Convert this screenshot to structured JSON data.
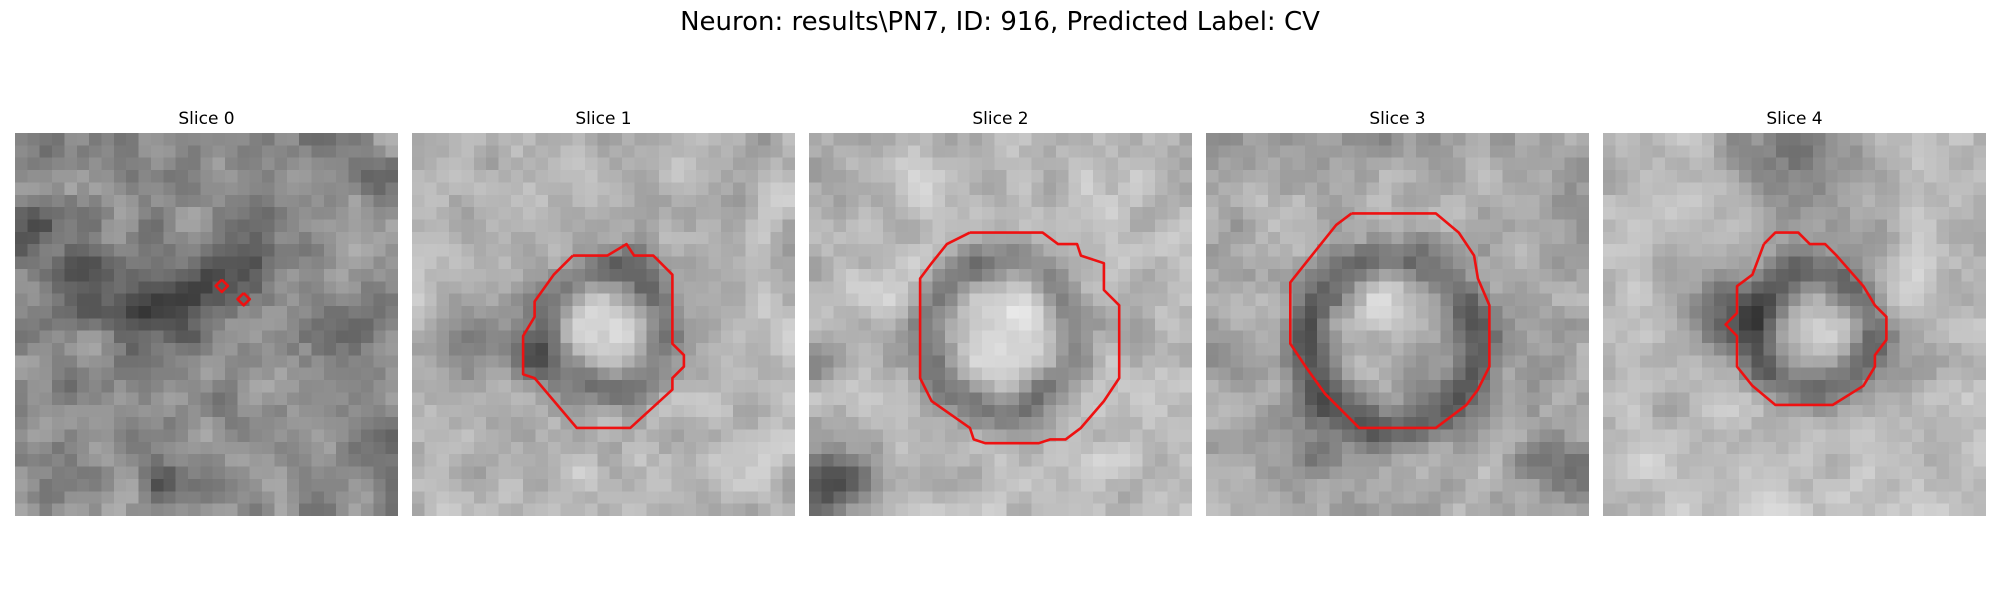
{
  "figure": {
    "title": "Neuron: results\\PN7, ID: 916, Predicted Label: CV",
    "contour_color": "#ee1111"
  },
  "panels": [
    {
      "title": "Slice 0",
      "base": 140,
      "amp": 60,
      "seed": 11,
      "dark": [
        [
          0.4,
          0.45,
          0.15,
          65
        ],
        [
          0.15,
          0.4,
          0.12,
          40
        ],
        [
          0.6,
          0.32,
          0.1,
          45
        ],
        [
          0.9,
          0.55,
          0.12,
          30
        ],
        [
          0.05,
          0.25,
          0.05,
          60
        ],
        [
          0.38,
          0.9,
          0.05,
          50
        ]
      ],
      "contour": [
        [
          [
            0.54,
            0.383
          ],
          [
            0.556,
            0.399
          ],
          [
            0.54,
            0.415
          ],
          [
            0.524,
            0.399
          ]
        ],
        [
          [
            0.597,
            0.418
          ],
          [
            0.613,
            0.434
          ],
          [
            0.597,
            0.45
          ],
          [
            0.581,
            0.434
          ]
        ]
      ]
    },
    {
      "title": "Slice 1",
      "base": 180,
      "amp": 45,
      "seed": 23,
      "dark": [
        [
          0.5,
          0.51,
          0.28,
          70
        ],
        [
          0.15,
          0.55,
          0.1,
          50
        ],
        [
          0.58,
          0.35,
          0.08,
          40
        ],
        [
          0.3,
          0.6,
          0.06,
          60
        ]
      ],
      "light": [
        [
          0.5,
          0.47,
          0.15,
          35
        ]
      ],
      "contour": [
        [
          [
            0.42,
            0.32
          ],
          [
            0.51,
            0.32
          ],
          [
            0.56,
            0.29
          ],
          [
            0.58,
            0.32
          ],
          [
            0.63,
            0.32
          ],
          [
            0.68,
            0.37
          ],
          [
            0.68,
            0.55
          ],
          [
            0.71,
            0.58
          ],
          [
            0.71,
            0.61
          ],
          [
            0.68,
            0.64
          ],
          [
            0.68,
            0.67
          ],
          [
            0.57,
            0.77
          ],
          [
            0.43,
            0.77
          ],
          [
            0.32,
            0.64
          ],
          [
            0.29,
            0.63
          ],
          [
            0.29,
            0.53
          ],
          [
            0.32,
            0.48
          ],
          [
            0.32,
            0.44
          ],
          [
            0.37,
            0.37
          ],
          [
            0.42,
            0.32
          ]
        ]
      ]
    },
    {
      "title": "Slice 2",
      "base": 182,
      "amp": 45,
      "seed": 37,
      "dark": [
        [
          0.5,
          0.53,
          0.35,
          75
        ],
        [
          0.07,
          0.92,
          0.1,
          100
        ],
        [
          0.02,
          0.62,
          0.05,
          55
        ]
      ],
      "light": [
        [
          0.5,
          0.5,
          0.24,
          35
        ]
      ],
      "contour": [
        [
          [
            0.42,
            0.26
          ],
          [
            0.61,
            0.26
          ],
          [
            0.65,
            0.29
          ],
          [
            0.7,
            0.29
          ],
          [
            0.71,
            0.32
          ],
          [
            0.77,
            0.34
          ],
          [
            0.77,
            0.41
          ],
          [
            0.81,
            0.45
          ],
          [
            0.81,
            0.64
          ],
          [
            0.77,
            0.7
          ],
          [
            0.71,
            0.77
          ],
          [
            0.67,
            0.8
          ],
          [
            0.63,
            0.8
          ],
          [
            0.6,
            0.81
          ],
          [
            0.46,
            0.81
          ],
          [
            0.43,
            0.8
          ],
          [
            0.42,
            0.77
          ],
          [
            0.32,
            0.7
          ],
          [
            0.29,
            0.64
          ],
          [
            0.29,
            0.38
          ],
          [
            0.32,
            0.34
          ],
          [
            0.36,
            0.29
          ],
          [
            0.42,
            0.26
          ]
        ]
      ]
    },
    {
      "title": "Slice 3",
      "base": 168,
      "amp": 50,
      "seed": 53,
      "dark": [
        [
          0.49,
          0.55,
          0.4,
          80
        ],
        [
          0.3,
          0.85,
          0.09,
          50
        ],
        [
          0.93,
          0.88,
          0.09,
          45
        ]
      ],
      "light": [
        [
          0.48,
          0.4,
          0.15,
          35
        ]
      ],
      "contour": [
        [
          [
            0.38,
            0.21
          ],
          [
            0.6,
            0.21
          ],
          [
            0.66,
            0.26
          ],
          [
            0.7,
            0.32
          ],
          [
            0.71,
            0.38
          ],
          [
            0.74,
            0.45
          ],
          [
            0.74,
            0.61
          ],
          [
            0.71,
            0.67
          ],
          [
            0.68,
            0.71
          ],
          [
            0.64,
            0.74
          ],
          [
            0.6,
            0.77
          ],
          [
            0.4,
            0.77
          ],
          [
            0.31,
            0.68
          ],
          [
            0.26,
            0.61
          ],
          [
            0.22,
            0.55
          ],
          [
            0.22,
            0.39
          ],
          [
            0.26,
            0.34
          ],
          [
            0.3,
            0.29
          ],
          [
            0.34,
            0.24
          ],
          [
            0.38,
            0.21
          ]
        ]
      ]
    },
    {
      "title": "Slice 4",
      "base": 190,
      "amp": 40,
      "seed": 71,
      "dark": [
        [
          0.55,
          0.52,
          0.28,
          85
        ],
        [
          0.3,
          0.47,
          0.12,
          80
        ],
        [
          0.5,
          0.05,
          0.2,
          65
        ],
        [
          0.82,
          0.6,
          0.1,
          35
        ],
        [
          0.72,
          0.3,
          0.06,
          40
        ]
      ],
      "light": [
        [
          0.55,
          0.5,
          0.1,
          15
        ]
      ],
      "contour": [
        [
          [
            0.42,
            0.29
          ],
          [
            0.45,
            0.26
          ],
          [
            0.51,
            0.26
          ],
          [
            0.54,
            0.29
          ],
          [
            0.58,
            0.29
          ],
          [
            0.61,
            0.32
          ],
          [
            0.68,
            0.4
          ],
          [
            0.71,
            0.45
          ],
          [
            0.74,
            0.48
          ],
          [
            0.74,
            0.54
          ],
          [
            0.71,
            0.58
          ],
          [
            0.71,
            0.61
          ],
          [
            0.68,
            0.66
          ],
          [
            0.6,
            0.71
          ],
          [
            0.45,
            0.71
          ],
          [
            0.39,
            0.66
          ],
          [
            0.35,
            0.61
          ],
          [
            0.35,
            0.53
          ],
          [
            0.32,
            0.5
          ],
          [
            0.35,
            0.47
          ],
          [
            0.35,
            0.4
          ],
          [
            0.39,
            0.37
          ],
          [
            0.42,
            0.29
          ]
        ]
      ]
    }
  ]
}
